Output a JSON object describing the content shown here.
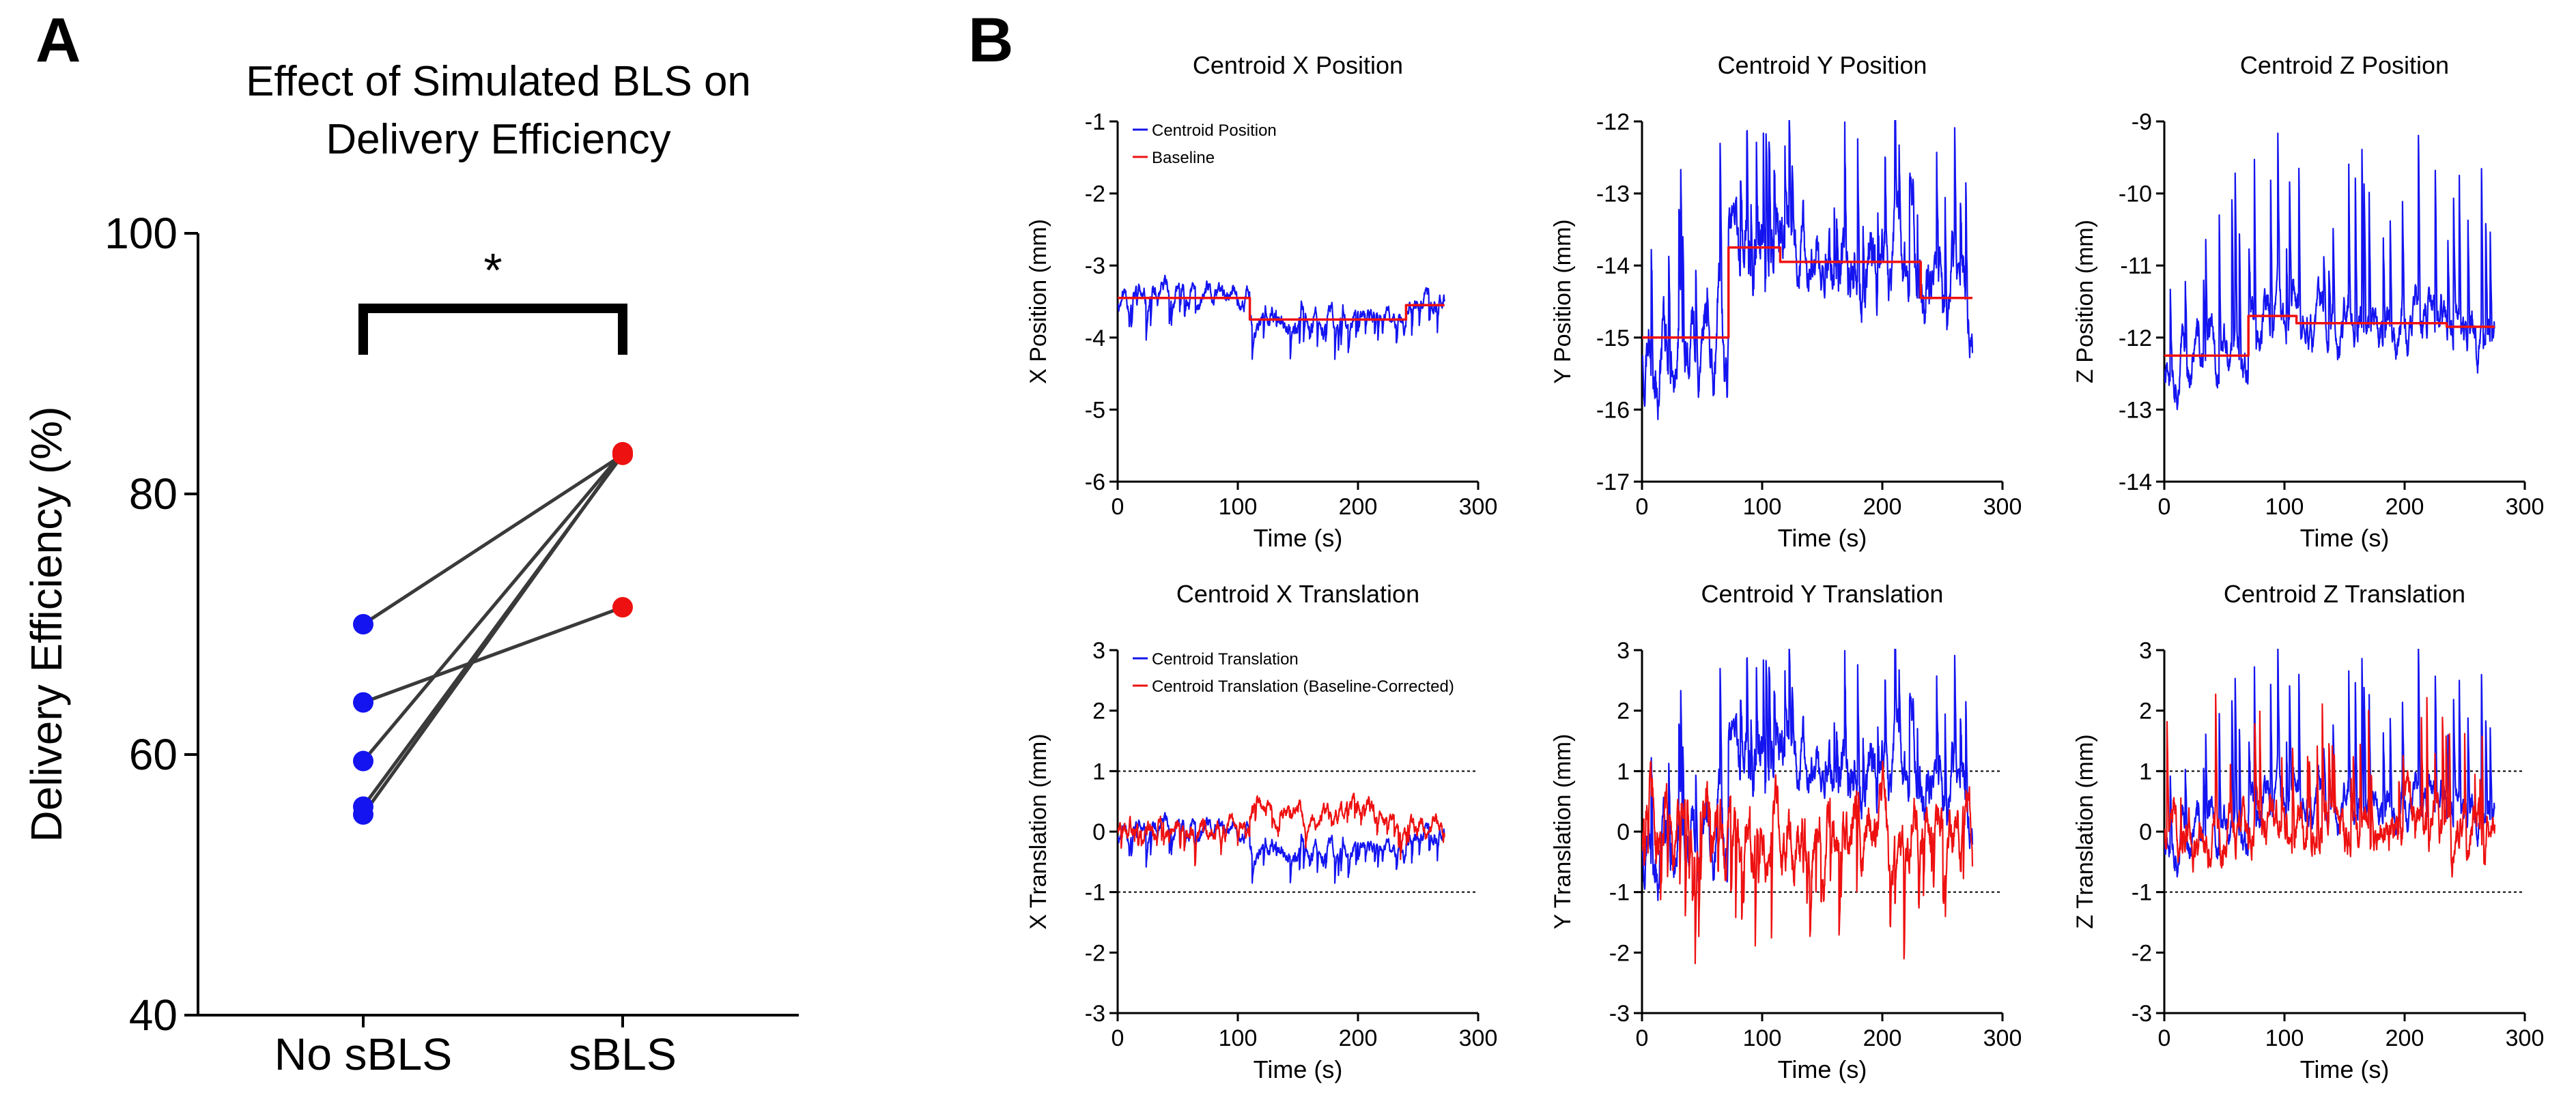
{
  "panel_labels": {
    "a": "A",
    "b": "B"
  },
  "colors": {
    "blue": "#1414f0",
    "red": "#ee1111",
    "black": "#000000",
    "connector": "#3a3a3a"
  },
  "chart_data": [
    {
      "id": "paired",
      "type": "scatter",
      "title_line1": "Effect of Simulated BLS on",
      "title_line2": "Delivery Efficiency",
      "xlabel": "",
      "ylabel": "Delivery Efficiency (%)",
      "categories": [
        "No sBLS",
        "sBLS"
      ],
      "ylim": [
        40,
        100
      ],
      "yticks": [
        40,
        60,
        80,
        100
      ],
      "significance": "*",
      "pairs": [
        [
          70,
          83
        ],
        [
          64,
          71.3
        ],
        [
          59.5,
          83.2
        ],
        [
          56,
          83
        ],
        [
          55.4,
          83.1
        ]
      ]
    },
    {
      "id": "cxp",
      "type": "line",
      "title": "Centroid X Position",
      "xlabel": "Time (s)",
      "ylabel": "X Position (mm)",
      "xlim": [
        0,
        300
      ],
      "ylim": [
        -6,
        -1
      ],
      "xticks": [
        0,
        100,
        200,
        300
      ],
      "yticks": [
        -6,
        -5,
        -4,
        -3,
        -2,
        -1
      ],
      "legend": [
        "Centroid Position",
        "Baseline"
      ],
      "series": [
        {
          "name": "Centroid Position",
          "color": "blue",
          "tmax": 272,
          "base": "step",
          "amp": 0.13,
          "spikes": 0.3,
          "spike_dir": -1,
          "seed": 11
        },
        {
          "name": "Baseline",
          "color": "red",
          "steps": [
            [
              0,
              -3.45
            ],
            [
              110,
              -3.45
            ],
            [
              110,
              -3.75
            ],
            [
              240,
              -3.75
            ],
            [
              240,
              -3.55
            ],
            [
              272,
              -3.55
            ]
          ]
        }
      ]
    },
    {
      "id": "cyp",
      "type": "line",
      "title": "Centroid Y Position",
      "xlabel": "Time (s)",
      "ylabel": "Y Position (mm)",
      "xlim": [
        0,
        300
      ],
      "ylim": [
        -17,
        -12
      ],
      "xticks": [
        0,
        100,
        200,
        300
      ],
      "yticks": [
        -17,
        -16,
        -15,
        -14,
        -13,
        -12
      ],
      "series": [
        {
          "name": "Centroid Position",
          "color": "blue",
          "tmax": 275,
          "base": "step",
          "amp": 0.5,
          "spikes": 1.3,
          "spike_dir": 1,
          "seed": 23
        },
        {
          "name": "Baseline",
          "color": "red",
          "steps": [
            [
              0,
              -15.0
            ],
            [
              72,
              -15.0
            ],
            [
              72,
              -13.75
            ],
            [
              115,
              -13.75
            ],
            [
              115,
              -13.95
            ],
            [
              232,
              -13.95
            ],
            [
              232,
              -14.45
            ],
            [
              275,
              -14.45
            ]
          ]
        }
      ]
    },
    {
      "id": "czp",
      "type": "line",
      "title": "Centroid Z Position",
      "xlabel": "Time (s)",
      "ylabel": "Z Position (mm)",
      "xlim": [
        0,
        300
      ],
      "ylim": [
        -14,
        -9
      ],
      "xticks": [
        0,
        100,
        200,
        300
      ],
      "yticks": [
        -14,
        -13,
        -12,
        -11,
        -10,
        -9
      ],
      "series": [
        {
          "name": "Centroid Position",
          "color": "blue",
          "tmax": 275,
          "base": "step",
          "amp": 0.3,
          "spikes": 1.6,
          "spike_dir": 1,
          "seed": 37
        },
        {
          "name": "Baseline",
          "color": "red",
          "steps": [
            [
              0,
              -12.25
            ],
            [
              70,
              -12.25
            ],
            [
              70,
              -11.7
            ],
            [
              110,
              -11.7
            ],
            [
              110,
              -11.8
            ],
            [
              235,
              -11.8
            ],
            [
              235,
              -11.85
            ],
            [
              275,
              -11.85
            ]
          ]
        }
      ]
    },
    {
      "id": "cxt",
      "type": "line",
      "title": "Centroid X Translation",
      "xlabel": "Time (s)",
      "ylabel": "X Translation (mm)",
      "xlim": [
        0,
        300
      ],
      "ylim": [
        -3,
        3
      ],
      "xticks": [
        0,
        100,
        200,
        300
      ],
      "yticks": [
        -3,
        -2,
        -1,
        0,
        1,
        2,
        3
      ],
      "hlines": [
        1,
        -1
      ],
      "legend": [
        "Centroid Translation",
        "Centroid Translation (Baseline-Corrected)"
      ],
      "series": [
        {
          "name": "Centroid Translation",
          "color": "blue",
          "tmax": 272,
          "base": "step",
          "amp": 0.13,
          "spikes": 0.3,
          "spike_dir": -1,
          "seed": 11,
          "offset": 3.45
        },
        {
          "name": "Centroid Translation (Baseline-Corrected)",
          "color": "red",
          "tmax": 272,
          "base": "flat",
          "amp": 0.15,
          "spikes": 0.25,
          "spike_dir": -1,
          "seed": 13,
          "bump": [
            110,
            230,
            0.3
          ]
        }
      ]
    },
    {
      "id": "cyt",
      "type": "line",
      "title": "Centroid Y Translation",
      "xlabel": "Time (s)",
      "ylabel": "Y Translation (mm)",
      "xlim": [
        0,
        300
      ],
      "ylim": [
        -3,
        3
      ],
      "xticks": [
        0,
        100,
        200,
        300
      ],
      "yticks": [
        -3,
        -2,
        -1,
        0,
        1,
        2,
        3
      ],
      "hlines": [
        1,
        -1
      ],
      "series": [
        {
          "name": "Centroid Translation",
          "color": "blue",
          "tmax": 275,
          "base": "step",
          "amp": 0.5,
          "spikes": 1.3,
          "spike_dir": 1,
          "seed": 23,
          "offset": 15.0
        },
        {
          "name": "Centroid Translation (Baseline-Corrected)",
          "color": "red",
          "tmax": 275,
          "base": "flat",
          "amp": 0.5,
          "spikes": 1.2,
          "spike_dir": -1,
          "seed": 29
        }
      ]
    },
    {
      "id": "czt",
      "type": "line",
      "title": "Centroid Z Translation",
      "xlabel": "Time (s)",
      "ylabel": "Z Translation (mm)",
      "xlim": [
        0,
        300
      ],
      "ylim": [
        -3,
        3
      ],
      "xticks": [
        0,
        100,
        200,
        300
      ],
      "yticks": [
        -3,
        -2,
        -1,
        0,
        1,
        2,
        3
      ],
      "hlines": [
        1,
        -1
      ],
      "series": [
        {
          "name": "Centroid Translation",
          "color": "blue",
          "tmax": 275,
          "base": "step",
          "amp": 0.3,
          "spikes": 1.6,
          "spike_dir": 1,
          "seed": 37,
          "offset": 12.25
        },
        {
          "name": "Centroid Translation (Baseline-Corrected)",
          "color": "red",
          "tmax": 275,
          "base": "flat",
          "amp": 0.35,
          "spikes": 1.4,
          "spike_dir": 1,
          "seed": 41
        }
      ]
    }
  ]
}
